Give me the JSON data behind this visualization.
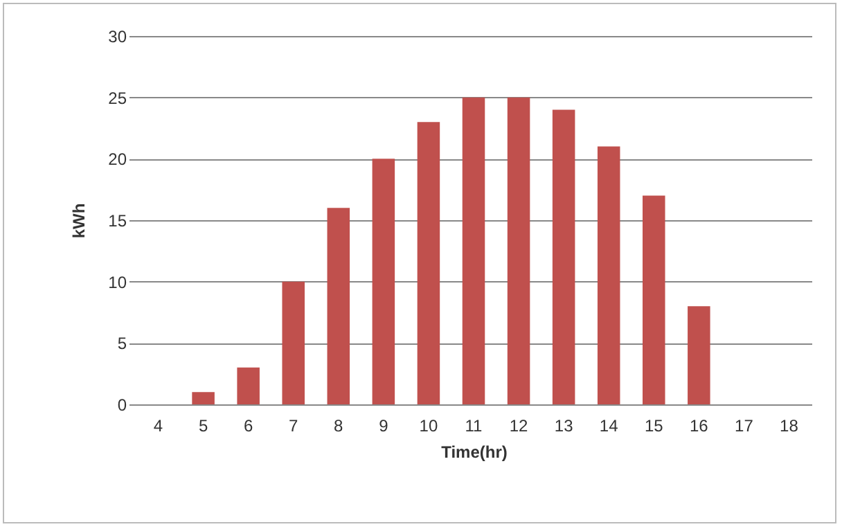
{
  "chart_data": {
    "type": "bar",
    "xlabel": "Time(hr)",
    "ylabel": "kWh",
    "categories": [
      "4",
      "5",
      "6",
      "7",
      "8",
      "9",
      "10",
      "11",
      "12",
      "13",
      "14",
      "15",
      "16",
      "17",
      "18"
    ],
    "values": [
      0,
      1,
      3,
      10,
      16,
      20,
      23,
      25,
      25,
      24,
      21,
      17,
      8,
      0,
      0
    ],
    "color": "#c0504d",
    "ylim": [
      0,
      30
    ],
    "yticks": [
      0,
      5,
      10,
      15,
      20,
      25,
      30
    ],
    "grid": "y"
  }
}
